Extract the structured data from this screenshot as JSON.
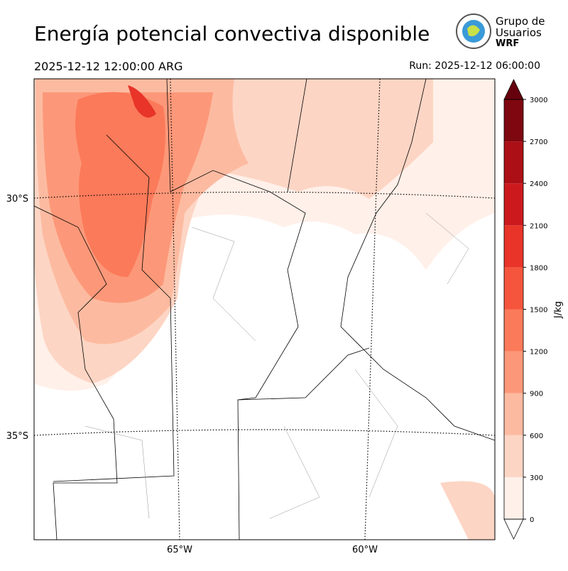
{
  "title": "Energía potencial convectiva disponible",
  "valid_time": "2025-12-12 12:00:00 ARG",
  "run": "Run: 2025-12-12 06:00:00",
  "logo": {
    "line1": "Grupo de",
    "line2": "Usuarios",
    "line3": "WRF"
  },
  "map": {
    "lat_labels": [
      "30°S",
      "35°S"
    ],
    "lon_labels": [
      "65°W",
      "60°W"
    ]
  },
  "colorbar": {
    "label": "J/kg",
    "lim": [
      0,
      3000
    ],
    "ticks": [
      0,
      300,
      600,
      900,
      1200,
      1500,
      1800,
      2100,
      2400,
      2700,
      3000
    ],
    "colors": [
      "#fff0e9",
      "#fdd5c4",
      "#fcbba1",
      "#fc9879",
      "#fb7a5a",
      "#f5553c",
      "#e83429",
      "#cc191e",
      "#ac1016",
      "#7f0710"
    ],
    "over_color": "#67000d",
    "under_color": "#ffffff"
  }
}
